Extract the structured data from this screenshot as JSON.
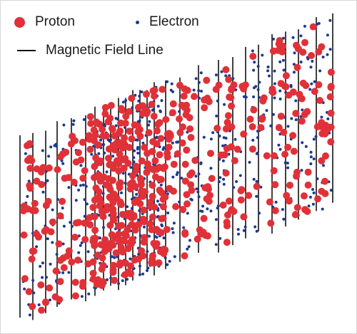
{
  "legend": {
    "proton_label": "Proton",
    "electron_label": "Electron",
    "field_line_label": "Magnetic Field Line"
  },
  "colors": {
    "proton": "#e03138",
    "electron": "#1b3a8c",
    "field_line": "#111111",
    "background": "#ffffff"
  },
  "icons": {
    "proton": "red-filled-circle-icon",
    "electron": "blue-dot-icon",
    "field_line": "black-line-icon"
  }
}
